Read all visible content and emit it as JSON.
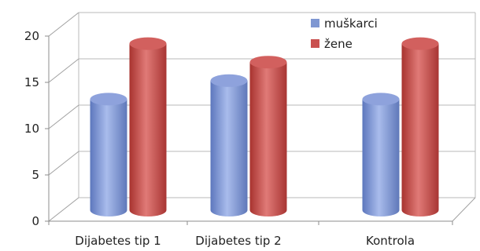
{
  "chart_data": {
    "type": "bar",
    "categories": [
      "Dijabetes tip 1",
      "Dijabetes tip 2",
      "Kontrola"
    ],
    "series": [
      {
        "name": "muškarci",
        "values": [
          12,
          14,
          12
        ],
        "color": "#7f97d2"
      },
      {
        "name": "žene",
        "values": [
          18,
          16,
          18
        ],
        "color": "#c9504f"
      }
    ],
    "title": "",
    "xlabel": "",
    "ylabel": "",
    "ylim": [
      0,
      20
    ],
    "yticks": [
      "0",
      "5",
      "10",
      "15",
      "20"
    ],
    "grid": true,
    "legend_position": "top-right",
    "style": "3d-cylinder"
  }
}
